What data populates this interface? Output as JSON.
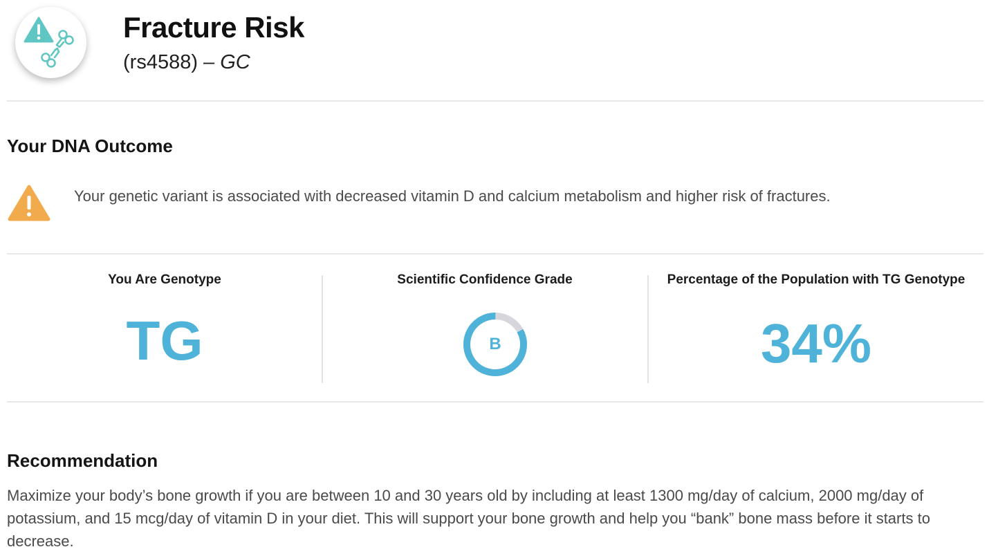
{
  "header": {
    "title": "Fracture Risk",
    "snp": "(rs4588)",
    "dash": " – ",
    "gene": "GC",
    "icon": "broken-bone-warning-icon"
  },
  "outcome": {
    "heading": "Your DNA Outcome",
    "icon": "warning-triangle-icon",
    "message": "Your genetic variant is associated with decreased vitamin D and calcium metabolism and higher risk of fractures."
  },
  "stats": {
    "genotype_label": "You Are Genotype",
    "genotype_value": "TG",
    "grade_label": "Scientific Confidence Grade",
    "grade_value": "B",
    "grade_fill_fraction": 0.83,
    "population_label": "Percentage of the Population with TG Genotype",
    "population_value": "34%"
  },
  "recommendation": {
    "heading": "Recommendation",
    "text": "Maximize your body’s bone growth if you are between 10 and 30 years old by including at least 1300 mg/day of calcium, 2000 mg/day of potassium, and 15 mcg/day of vitamin D in your diet. This will support your bone growth and help you “bank” bone mass before it starts to decrease."
  },
  "colors": {
    "accent": "#4fb3d9",
    "warning": "#f2ab4c",
    "icon_teal": "#5fc6c4",
    "ring_track": "#d6d6dc"
  }
}
